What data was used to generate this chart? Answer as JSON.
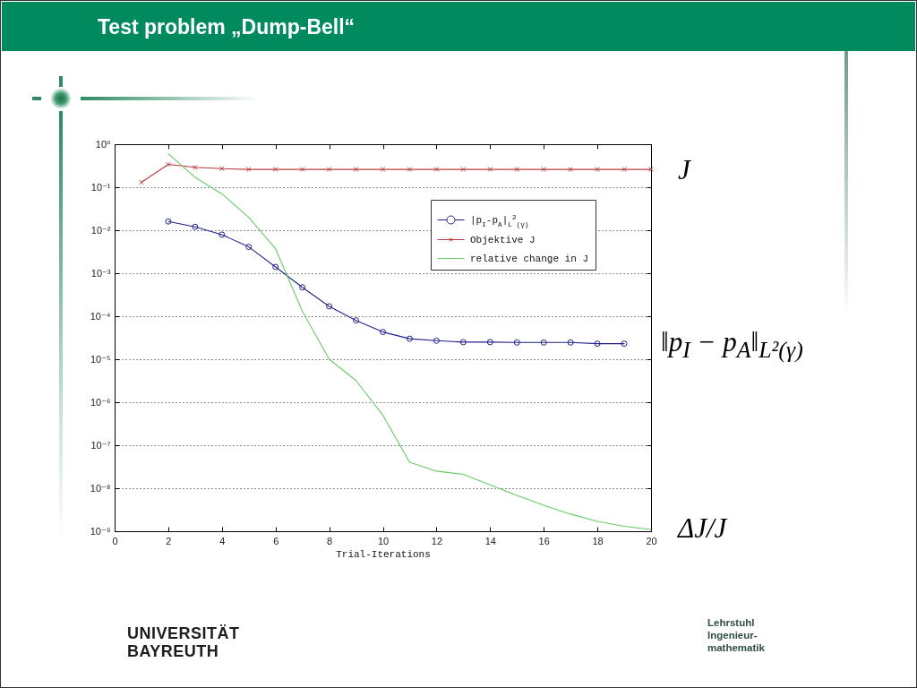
{
  "chart_data": {
    "type": "line",
    "title": "Test problem „Dump-Bell“",
    "xlabel": "Trial-Iterations",
    "xlim": [
      0,
      20
    ],
    "xticks": [
      0,
      2,
      4,
      6,
      8,
      10,
      12,
      14,
      16,
      18,
      20
    ],
    "ylim": [
      1e-09,
      1
    ],
    "yticks": [
      {
        "value": 1e-09,
        "label": "10⁻⁹"
      },
      {
        "value": 1e-08,
        "label": "10⁻⁸"
      },
      {
        "value": 1e-07,
        "label": "10⁻⁷"
      },
      {
        "value": 1e-06,
        "label": "10⁻⁶"
      },
      {
        "value": 1e-05,
        "label": "10⁻⁵"
      },
      {
        "value": 0.0001,
        "label": "10⁻⁴"
      },
      {
        "value": 0.001,
        "label": "10⁻³"
      },
      {
        "value": 0.01,
        "label": "10⁻²"
      },
      {
        "value": 0.1,
        "label": "10⁻¹"
      },
      {
        "value": 1,
        "label": "10⁰"
      }
    ],
    "log": "y",
    "grid": "y",
    "legend": "top right",
    "series": [
      {
        "name": "|p$_{I}$-p$_{A}$|$_{L}$$^{2}$$_{(γ)}$",
        "color": "#22228a",
        "marker": "circle",
        "x": [
          2,
          3,
          4,
          5,
          6,
          7,
          8,
          9,
          10,
          11,
          12,
          13,
          14,
          15,
          16,
          17,
          18,
          19
        ],
        "values": [
          0.016,
          0.012,
          0.0079,
          0.0041,
          0.0014,
          0.00047,
          0.00017,
          8e-05,
          4.3e-05,
          3e-05,
          2.7e-05,
          2.5e-05,
          2.5e-05,
          2.45e-05,
          2.45e-05,
          2.45e-05,
          2.3e-05,
          2.3e-05
        ]
      },
      {
        "name": "Objektive J",
        "color": "#b83c3c",
        "marker": "cross",
        "x": [
          1,
          2,
          3,
          4,
          5,
          6,
          7,
          8,
          9,
          10,
          11,
          12,
          13,
          14,
          15,
          16,
          17,
          18,
          19,
          20
        ],
        "values": [
          0.13,
          0.34,
          0.29,
          0.27,
          0.26,
          0.26,
          0.26,
          0.26,
          0.26,
          0.26,
          0.26,
          0.26,
          0.26,
          0.26,
          0.26,
          0.26,
          0.26,
          0.26,
          0.26,
          0.26
        ]
      },
      {
        "name": "relative change in J",
        "color": "#66cc66",
        "marker": "none",
        "x": [
          2,
          3,
          4,
          5,
          6,
          7,
          8,
          9,
          10,
          11,
          12,
          13,
          14,
          15,
          16,
          17,
          18,
          19,
          20
        ],
        "values": [
          0.6,
          0.17,
          0.07,
          0.02,
          0.0037,
          0.00013,
          1e-05,
          3.2e-06,
          5e-07,
          4e-08,
          2.5e-08,
          2.1e-08,
          1.2e-08,
          6.8e-09,
          4e-09,
          2.5e-09,
          1.7e-09,
          1.3e-09,
          1.1e-09
        ]
      }
    ],
    "annotations": [
      "J",
      "‖p$_{I}$ − p$_{A}$‖$_{L²(γ)}$",
      "ΔJ/J",
      "UNIVERSITÄT BAYREUTH",
      "Lehrstuhl Ingenieur-mathematik"
    ]
  }
}
